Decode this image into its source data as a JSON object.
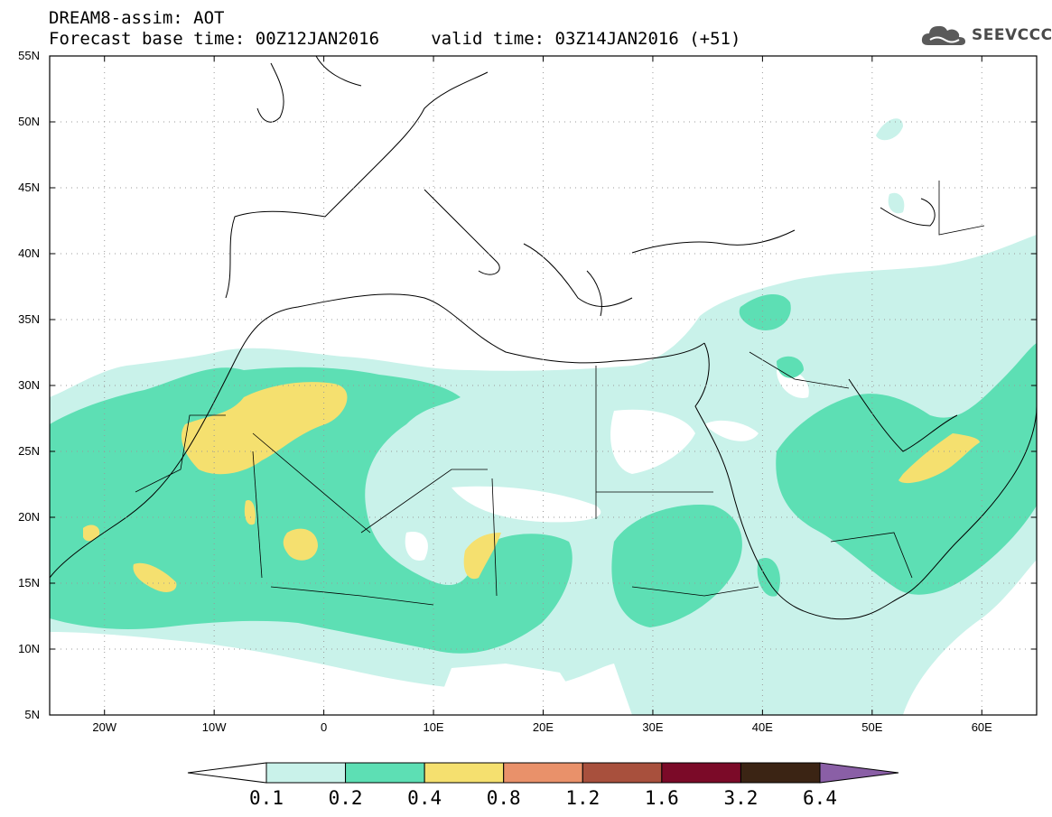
{
  "header": {
    "line1": "DREAM8-assim: AOT",
    "line2": "Forecast base time: 00Z12JAN2016     valid time: 03Z14JAN2016 (+51)"
  },
  "logo": {
    "text": "SEEVCCC",
    "icon": "cloud-icon"
  },
  "map": {
    "lon_range": [
      -25,
      65
    ],
    "lat_range": [
      5,
      55
    ],
    "lat_ticks": [
      "55N",
      "50N",
      "45N",
      "40N",
      "35N",
      "30N",
      "25N",
      "20N",
      "15N",
      "10N",
      "5N"
    ],
    "lon_ticks": [
      "20W",
      "10W",
      "0",
      "10E",
      "20E",
      "30E",
      "40E",
      "50E",
      "60E"
    ]
  },
  "colorbar": {
    "labels": [
      "0.1",
      "0.2",
      "0.4",
      "0.8",
      "1.2",
      "1.6",
      "3.2",
      "6.4"
    ],
    "colors": [
      "#ffffff",
      "#c9f2ea",
      "#5ddfb4",
      "#f5e06f",
      "#e9916a",
      "#a8503d",
      "#7b0a28",
      "#3b2414",
      "#8a5fa6"
    ]
  }
}
